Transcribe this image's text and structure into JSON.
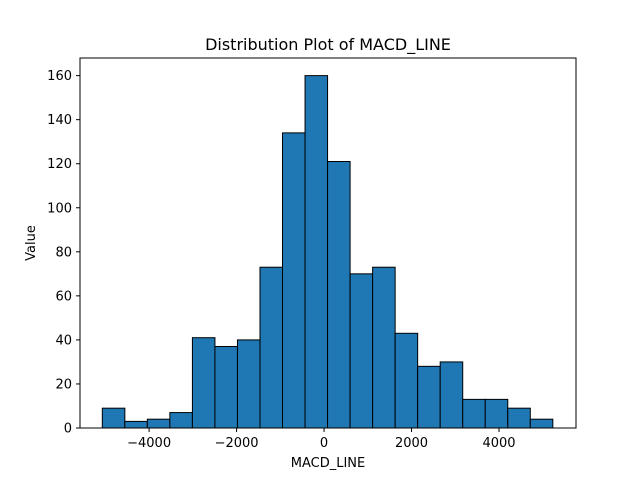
{
  "chart_data": {
    "type": "bar",
    "title": "Distribution Plot of MACD_LINE",
    "xlabel": "MACD_LINE",
    "ylabel": "Value",
    "bin_start": -5070,
    "bin_width": 515,
    "counts": [
      9,
      3,
      4,
      7,
      41,
      37,
      40,
      73,
      134,
      160,
      121,
      70,
      73,
      43,
      28,
      30,
      13,
      13,
      9,
      4
    ],
    "xlim": [
      -5580,
      5760
    ],
    "ylim": [
      0,
      168
    ],
    "xticks": [
      -4000,
      -2000,
      0,
      2000,
      4000
    ],
    "xtick_labels": [
      "−4000",
      "−2000",
      "0",
      "2000",
      "4000"
    ],
    "yticks": [
      0,
      20,
      40,
      60,
      80,
      100,
      120,
      140,
      160
    ],
    "ytick_labels": [
      "0",
      "20",
      "40",
      "60",
      "80",
      "100",
      "120",
      "140",
      "160"
    ],
    "grid": false,
    "legend": "none",
    "bar_color": "#1f77b4",
    "edge_color": "#000000"
  }
}
